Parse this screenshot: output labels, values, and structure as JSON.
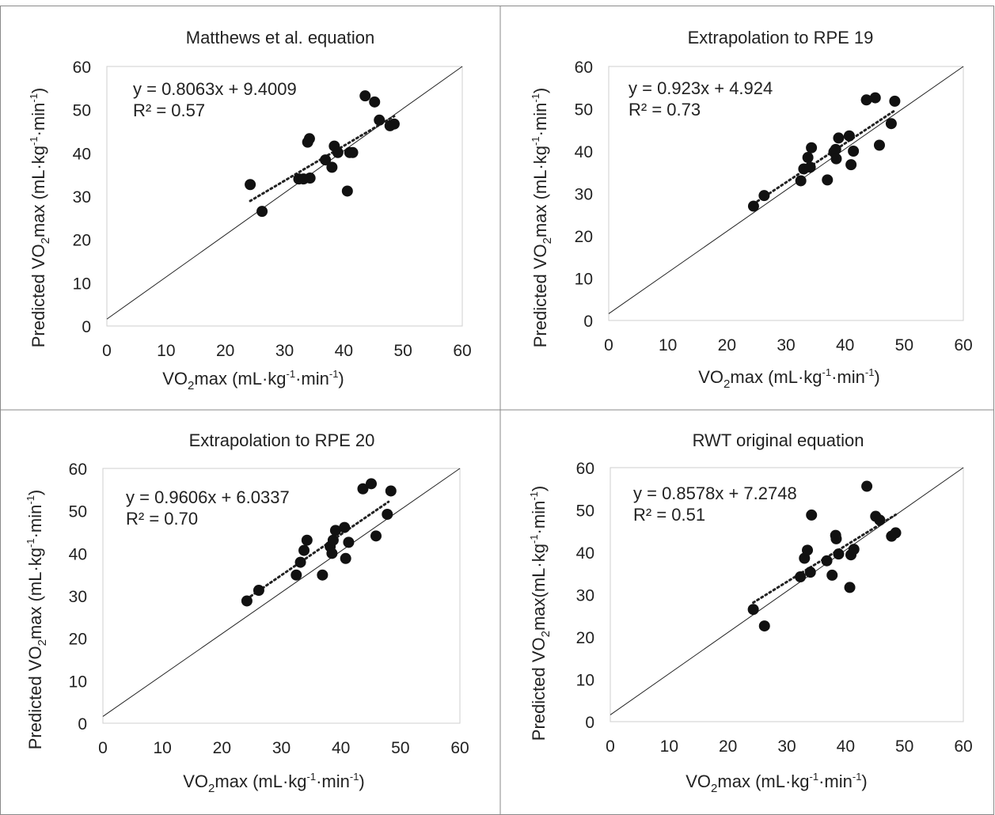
{
  "chart_data": [
    {
      "type": "scatter",
      "title": "Matthews et al. equation",
      "equation": "y = 0.8063x + 9.4009",
      "r2": "R² = 0.57",
      "xlabel": "VO2max (mL·kg-1·min-1)",
      "ylabel": "Predicted VO2max (mL·kg-1·min-1)",
      "xlim": [
        0,
        60
      ],
      "ylim": [
        0,
        60
      ],
      "xticks": [
        "0",
        "10",
        "20",
        "30",
        "40",
        "50",
        "60"
      ],
      "yticks": [
        "0",
        "10",
        "20",
        "30",
        "40",
        "50",
        "60"
      ],
      "trendline": {
        "slope": 0.8063,
        "intercept": 9.4009,
        "x_range": [
          24.2,
          48.5
        ],
        "style": "dotted"
      },
      "identity_line": true,
      "points": [
        [
          24.2,
          32.7
        ],
        [
          26.2,
          26.5
        ],
        [
          32.4,
          34.0
        ],
        [
          33.2,
          34.0
        ],
        [
          33.9,
          42.5
        ],
        [
          34.2,
          43.3
        ],
        [
          34.3,
          34.2
        ],
        [
          36.9,
          38.4
        ],
        [
          38.0,
          36.7
        ],
        [
          38.4,
          41.6
        ],
        [
          39.0,
          40.1
        ],
        [
          40.6,
          31.2
        ],
        [
          41.0,
          40.1
        ],
        [
          41.5,
          40.1
        ],
        [
          43.6,
          53.2
        ],
        [
          45.2,
          51.8
        ],
        [
          46.0,
          47.6
        ],
        [
          47.8,
          46.3
        ],
        [
          48.5,
          46.7
        ]
      ]
    },
    {
      "type": "scatter",
      "title": "Extrapolation to RPE 19",
      "equation": "y = 0.923x + 4.924",
      "r2": "R² = 0.73",
      "xlabel": "VO2max (mL·kg-1·min-1)",
      "ylabel": "Predicted VO2max (mL·kg-1·min-1)",
      "xlim": [
        0,
        60
      ],
      "ylim": [
        0,
        60
      ],
      "xticks": [
        "0",
        "10",
        "20",
        "30",
        "40",
        "50",
        "60"
      ],
      "yticks": [
        "0",
        "10",
        "20",
        "30",
        "40",
        "50",
        "60"
      ],
      "trendline": {
        "slope": 0.923,
        "intercept": 4.924,
        "x_range": [
          24.5,
          48.5
        ],
        "style": "dotted"
      },
      "identity_line": true,
      "points": [
        [
          24.5,
          27.0
        ],
        [
          26.3,
          29.5
        ],
        [
          32.5,
          33.0
        ],
        [
          33.0,
          35.8
        ],
        [
          33.7,
          38.5
        ],
        [
          34.1,
          36.2
        ],
        [
          34.3,
          40.8
        ],
        [
          37.0,
          33.2
        ],
        [
          38.1,
          39.8
        ],
        [
          38.4,
          40.4
        ],
        [
          38.5,
          38.2
        ],
        [
          38.9,
          43.1
        ],
        [
          40.7,
          43.6
        ],
        [
          41.0,
          36.8
        ],
        [
          41.4,
          40.0
        ],
        [
          43.6,
          52.1
        ],
        [
          45.1,
          52.6
        ],
        [
          45.8,
          41.4
        ],
        [
          47.8,
          46.5
        ],
        [
          48.4,
          51.8
        ]
      ]
    },
    {
      "type": "scatter",
      "title": "Extrapolation to RPE 20",
      "equation": "y = 0.9606x + 6.0337",
      "r2": "R² = 0.70",
      "xlabel": "VO2max (mL·kg-1·min-1)",
      "ylabel": "Predicted VO2max (mL·kg-1·min-1)",
      "xlim": [
        0,
        60
      ],
      "ylim": [
        0,
        60
      ],
      "xticks": [
        "0",
        "10",
        "20",
        "30",
        "40",
        "50",
        "60"
      ],
      "yticks": [
        "0",
        "10",
        "20",
        "30",
        "40",
        "50",
        "60"
      ],
      "trendline": {
        "slope": 0.9606,
        "intercept": 6.0337,
        "x_range": [
          24.2,
          48.0
        ],
        "style": "dotted"
      },
      "identity_line": true,
      "points": [
        [
          24.2,
          28.8
        ],
        [
          26.2,
          31.3
        ],
        [
          32.5,
          34.9
        ],
        [
          33.2,
          37.9
        ],
        [
          33.8,
          40.7
        ],
        [
          34.3,
          43.1
        ],
        [
          36.9,
          34.9
        ],
        [
          38.2,
          41.6
        ],
        [
          38.5,
          40.0
        ],
        [
          38.7,
          43.1
        ],
        [
          39.1,
          45.4
        ],
        [
          40.6,
          46.1
        ],
        [
          40.8,
          38.8
        ],
        [
          41.3,
          42.6
        ],
        [
          43.7,
          55.2
        ],
        [
          45.1,
          56.4
        ],
        [
          45.9,
          44.1
        ],
        [
          47.8,
          49.2
        ],
        [
          48.4,
          54.7
        ]
      ]
    },
    {
      "type": "scatter",
      "title": "RWT original equation",
      "equation": "y = 0.8578x + 7.2748",
      "r2": "R² = 0.51",
      "xlabel": "VO2max (mL·kg-1·min-1)",
      "ylabel": "Predicted VO2max(mL·kg-1·min-1)",
      "xlim": [
        0,
        60
      ],
      "ylim": [
        0,
        60
      ],
      "xticks": [
        "0",
        "10",
        "20",
        "30",
        "40",
        "50",
        "60"
      ],
      "yticks": [
        "0",
        "10",
        "20",
        "30",
        "40",
        "50",
        "60"
      ],
      "trendline": {
        "slope": 0.8578,
        "intercept": 7.2748,
        "x_range": [
          24.3,
          48.5
        ],
        "style": "dotted"
      },
      "identity_line": true,
      "points": [
        [
          24.3,
          26.5
        ],
        [
          26.2,
          22.6
        ],
        [
          32.3,
          34.2
        ],
        [
          33.0,
          38.6
        ],
        [
          33.5,
          40.5
        ],
        [
          34.0,
          35.3
        ],
        [
          34.2,
          48.8
        ],
        [
          36.8,
          38.0
        ],
        [
          37.7,
          34.6
        ],
        [
          38.3,
          44.0
        ],
        [
          38.4,
          43.2
        ],
        [
          38.8,
          39.6
        ],
        [
          40.7,
          31.7
        ],
        [
          40.9,
          39.4
        ],
        [
          41.4,
          40.7
        ],
        [
          43.6,
          55.6
        ],
        [
          45.1,
          48.5
        ],
        [
          45.8,
          47.6
        ],
        [
          47.8,
          43.8
        ],
        [
          48.5,
          44.6
        ]
      ]
    }
  ]
}
